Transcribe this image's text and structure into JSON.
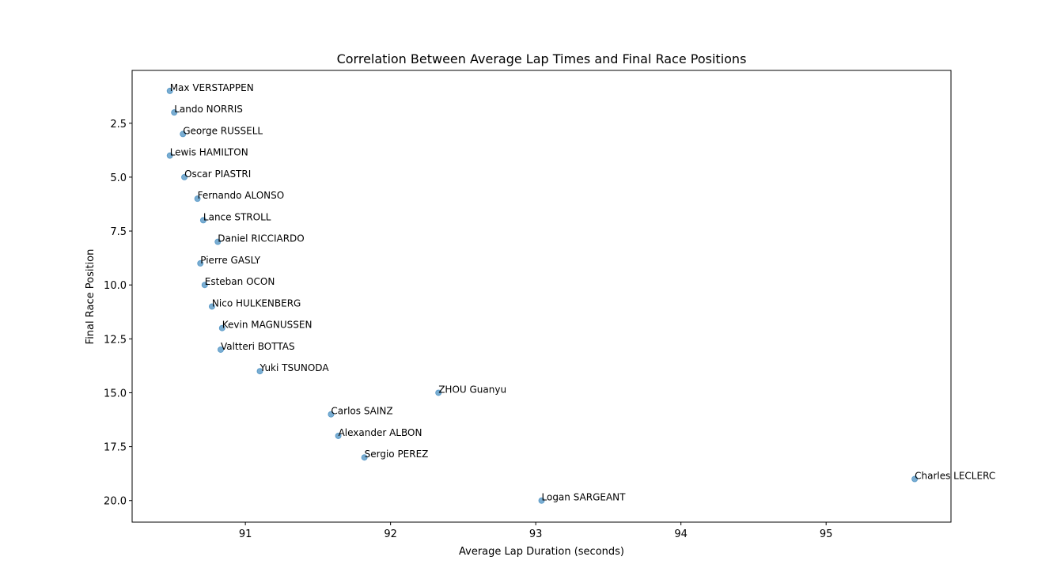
{
  "chart_data": {
    "type": "scatter",
    "title": "Correlation Between Average Lap Times and Final Race Positions",
    "xlabel": "Average Lap Duration (seconds)",
    "ylabel": "Final Race Position",
    "xlim": [
      90.22,
      95.86
    ],
    "ylim": [
      21.0,
      0.05
    ],
    "y_inverted": true,
    "x_ticks": [
      91,
      92,
      93,
      94,
      95
    ],
    "x_tick_labels": [
      "91",
      "92",
      "93",
      "94",
      "95"
    ],
    "y_ticks": [
      2.5,
      5.0,
      7.5,
      10.0,
      12.5,
      15.0,
      17.5,
      20.0
    ],
    "y_tick_labels": [
      "2.5",
      "5.0",
      "7.5",
      "10.0",
      "12.5",
      "15.0",
      "17.5",
      "20.0"
    ],
    "grid": false,
    "point_color": "#1f77b4",
    "points": [
      {
        "label": "Max VERSTAPPEN",
        "x": 90.48,
        "y": 1
      },
      {
        "label": "Lando NORRIS",
        "x": 90.51,
        "y": 2
      },
      {
        "label": "George RUSSELL",
        "x": 90.57,
        "y": 3
      },
      {
        "label": "Lewis HAMILTON",
        "x": 90.48,
        "y": 4
      },
      {
        "label": "Oscar PIASTRI",
        "x": 90.58,
        "y": 5
      },
      {
        "label": "Fernando ALONSO",
        "x": 90.67,
        "y": 6
      },
      {
        "label": "Lance STROLL",
        "x": 90.71,
        "y": 7
      },
      {
        "label": "Daniel RICCIARDO",
        "x": 90.81,
        "y": 8
      },
      {
        "label": "Pierre GASLY",
        "x": 90.69,
        "y": 9
      },
      {
        "label": "Esteban OCON",
        "x": 90.72,
        "y": 10
      },
      {
        "label": "Nico HULKENBERG",
        "x": 90.77,
        "y": 11
      },
      {
        "label": "Kevin MAGNUSSEN",
        "x": 90.84,
        "y": 12
      },
      {
        "label": "Valtteri BOTTAS",
        "x": 90.83,
        "y": 13
      },
      {
        "label": "Yuki TSUNODA",
        "x": 91.1,
        "y": 14
      },
      {
        "label": "ZHOU Guanyu",
        "x": 92.33,
        "y": 15
      },
      {
        "label": "Carlos SAINZ",
        "x": 91.59,
        "y": 16
      },
      {
        "label": "Alexander ALBON",
        "x": 91.64,
        "y": 17
      },
      {
        "label": "Sergio PEREZ",
        "x": 91.82,
        "y": 18
      },
      {
        "label": "Charles LECLERC",
        "x": 95.61,
        "y": 19
      },
      {
        "label": "Logan SARGEANT",
        "x": 93.04,
        "y": 20
      }
    ]
  }
}
